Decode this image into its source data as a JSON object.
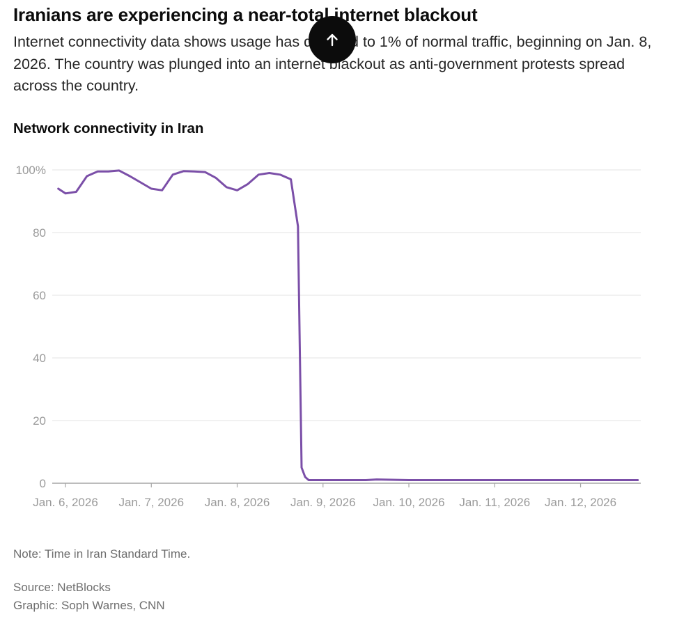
{
  "article": {
    "headline": "Iranians are experiencing a near-total internet blackout",
    "dek": "Internet connectivity data shows usage has dropped to 1% of normal traffic, beginning on Jan. 8, 2026. The country was plunged into an internet blackout as anti-government protests spread across the country."
  },
  "chart_data": {
    "type": "line",
    "title": "Network connectivity in Iran",
    "xlabel": "",
    "ylabel": "",
    "ylim": [
      0,
      100
    ],
    "yticks": [
      0,
      20,
      40,
      60,
      80,
      100
    ],
    "ytick_labels": [
      "0",
      "20",
      "40",
      "60",
      "80",
      "100%"
    ],
    "xlim": [
      "2026-01-06",
      "2026-01-12T18:00"
    ],
    "xticks": [
      "2026-01-06",
      "2026-01-07",
      "2026-01-08",
      "2026-01-09",
      "2026-01-10",
      "2026-01-11",
      "2026-01-12"
    ],
    "xtick_labels": [
      "Jan. 6, 2026",
      "Jan. 7, 2026",
      "Jan. 8, 2026",
      "Jan. 9, 2026",
      "Jan. 10, 2026",
      "Jan. 11, 2026",
      "Jan. 12, 2026"
    ],
    "grid": true,
    "color": "#7b4fa8",
    "series": [
      {
        "x": [
          "2026-01-05T22:00",
          "2026-01-06T00:00",
          "2026-01-06T03:00",
          "2026-01-06T06:00",
          "2026-01-06T09:00",
          "2026-01-06T12:00",
          "2026-01-06T15:00",
          "2026-01-06T18:00",
          "2026-01-06T21:00",
          "2026-01-07T00:00",
          "2026-01-07T03:00",
          "2026-01-07T06:00",
          "2026-01-07T09:00",
          "2026-01-07T12:00",
          "2026-01-07T15:00",
          "2026-01-07T18:00",
          "2026-01-07T21:00",
          "2026-01-08T00:00",
          "2026-01-08T03:00",
          "2026-01-08T06:00",
          "2026-01-08T09:00",
          "2026-01-08T12:00",
          "2026-01-08T15:00",
          "2026-01-08T17:00",
          "2026-01-08T18:00",
          "2026-01-08T19:00",
          "2026-01-08T20:00",
          "2026-01-08T21:00",
          "2026-01-09T00:00",
          "2026-01-09T12:00",
          "2026-01-09T15:00",
          "2026-01-10T00:00",
          "2026-01-11T00:00",
          "2026-01-12T00:00",
          "2026-01-12T16:00"
        ],
        "y": [
          94,
          92.5,
          93,
          98,
          99.5,
          99.5,
          99.8,
          98,
          96,
          94,
          93.5,
          98.5,
          99.6,
          99.5,
          99.3,
          97.5,
          94.5,
          93.5,
          95.5,
          98.5,
          99,
          98.5,
          97,
          82,
          5,
          2,
          1,
          1,
          1,
          1,
          1.2,
          1,
          1,
          1,
          1
        ]
      }
    ]
  },
  "footer": {
    "note": "Note: Time in Iran Standard Time.",
    "source": "Source: NetBlocks",
    "credit": "Graphic: Soph Warnes, CNN"
  },
  "back_to_top": {
    "icon": "arrow-up-icon"
  }
}
